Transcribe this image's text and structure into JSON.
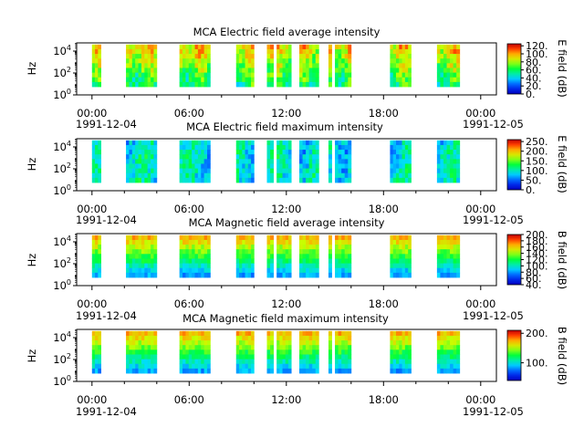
{
  "figure": {
    "background": "#ffffff"
  },
  "chart_data": [
    {
      "type": "heatmap",
      "title": "MCA  Electric field average intensity",
      "ylabel": "Hz",
      "y_scale": "log",
      "y_ticks": [
        "10^0",
        "10^2",
        "10^4"
      ],
      "x_ticks": [
        "00:00",
        "06:00",
        "12:00",
        "18:00",
        "00:00"
      ],
      "x_start_date": "1991-12-04",
      "x_end_date": "1991-12-05",
      "colorbar_label": "E field (dB)",
      "colorbar_ticks": [
        "0.",
        "20.",
        "40.",
        "60.",
        "80.",
        "100.",
        "120."
      ],
      "colorbar_range": [
        0,
        125
      ],
      "segments_hours": [
        [
          0.0,
          0.55
        ],
        [
          2.1,
          4.0
        ],
        [
          5.4,
          7.3
        ],
        [
          8.9,
          10.0
        ],
        [
          10.8,
          11.2
        ],
        [
          11.4,
          12.3
        ],
        [
          12.8,
          14.0
        ],
        [
          14.6,
          14.8
        ],
        [
          15.0,
          16.0
        ],
        [
          18.4,
          19.7
        ],
        [
          21.3,
          22.7
        ]
      ],
      "tone": "high"
    },
    {
      "type": "heatmap",
      "title": "MCA  Electric field maximum intensity",
      "ylabel": "Hz",
      "y_scale": "log",
      "y_ticks": [
        "10^0",
        "10^2",
        "10^4"
      ],
      "x_ticks": [
        "00:00",
        "06:00",
        "12:00",
        "18:00",
        "00:00"
      ],
      "x_start_date": "1991-12-04",
      "x_end_date": "1991-12-05",
      "colorbar_label": "E field (dB)",
      "colorbar_ticks": [
        "0.",
        "50.",
        "100.",
        "150.",
        "200.",
        "250."
      ],
      "colorbar_range": [
        0,
        260
      ],
      "segments_hours": [
        [
          0.0,
          0.55
        ],
        [
          2.1,
          4.0
        ],
        [
          5.4,
          7.3
        ],
        [
          8.9,
          10.0
        ],
        [
          10.8,
          11.2
        ],
        [
          11.4,
          12.3
        ],
        [
          12.8,
          14.0
        ],
        [
          14.6,
          14.8
        ],
        [
          15.0,
          16.0
        ],
        [
          18.4,
          19.7
        ],
        [
          21.3,
          22.7
        ]
      ],
      "tone": "mid"
    },
    {
      "type": "heatmap",
      "title": "MCA  Magnetic field average intensity",
      "ylabel": "Hz",
      "y_scale": "log",
      "y_ticks": [
        "10^0",
        "10^2",
        "10^4"
      ],
      "x_ticks": [
        "00:00",
        "06:00",
        "12:00",
        "18:00",
        "00:00"
      ],
      "x_start_date": "1991-12-04",
      "x_end_date": "1991-12-05",
      "colorbar_label": "B field (dB)",
      "colorbar_ticks": [
        "40.",
        "60.",
        "80.",
        "100.",
        "120.",
        "140.",
        "160.",
        "180.",
        "200."
      ],
      "colorbar_range": [
        40,
        200
      ],
      "segments_hours": [
        [
          0.0,
          0.55
        ],
        [
          2.1,
          4.0
        ],
        [
          5.4,
          7.3
        ],
        [
          8.9,
          10.0
        ],
        [
          10.8,
          11.2
        ],
        [
          11.4,
          12.3
        ],
        [
          12.8,
          14.0
        ],
        [
          14.6,
          14.8
        ],
        [
          15.0,
          16.0
        ],
        [
          18.4,
          19.7
        ],
        [
          21.3,
          22.7
        ]
      ],
      "tone": "bands"
    },
    {
      "type": "heatmap",
      "title": "MCA  Magnetic field maximum intensity",
      "ylabel": "Hz",
      "y_scale": "log",
      "y_ticks": [
        "10^0",
        "10^2",
        "10^4"
      ],
      "x_ticks": [
        "00:00",
        "06:00",
        "12:00",
        "18:00",
        "00:00"
      ],
      "x_start_date": "1991-12-04",
      "x_end_date": "1991-12-05",
      "colorbar_label": "B field (dB)",
      "colorbar_ticks": [
        "100.",
        "200."
      ],
      "colorbar_range": [
        40,
        210
      ],
      "segments_hours": [
        [
          0.0,
          0.55
        ],
        [
          2.1,
          4.0
        ],
        [
          5.4,
          7.3
        ],
        [
          8.9,
          10.0
        ],
        [
          10.8,
          11.2
        ],
        [
          11.4,
          12.3
        ],
        [
          12.8,
          14.0
        ],
        [
          14.6,
          14.8
        ],
        [
          15.0,
          16.0
        ],
        [
          18.4,
          19.7
        ],
        [
          21.3,
          22.7
        ]
      ],
      "tone": "bands"
    }
  ]
}
